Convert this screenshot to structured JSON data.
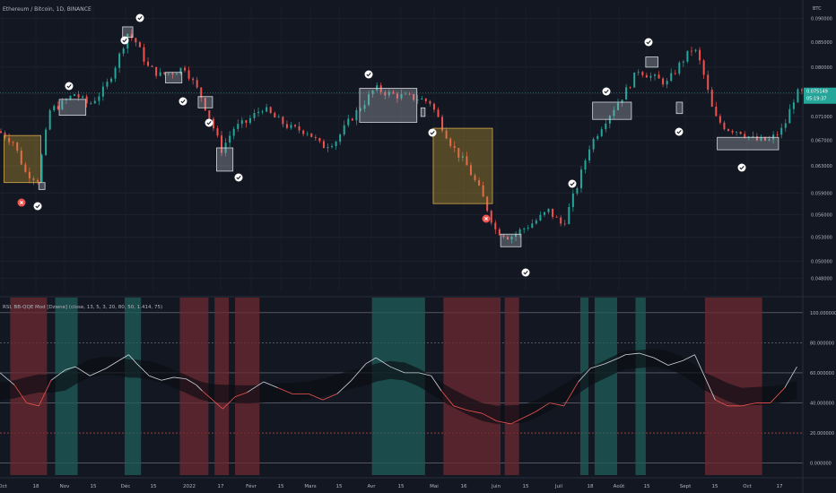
{
  "header": {
    "symbol_line": "Ethereum / Bitcoin, 1D, BINANCE",
    "currency": "BTC"
  },
  "indicator": {
    "label": "RSI, BB-QQE Mod [Dzwne] (close, 13, 5, 3, 20, 80, 50, 1.414, 75)"
  },
  "price_scale": {
    "ticks": [
      "0.090000",
      "0.085000",
      "0.080000",
      "0.075000",
      "0.071000",
      "0.067000",
      "0.063000",
      "0.059000",
      "0.056000",
      "0.053000",
      "0.050000",
      "0.048000"
    ],
    "last_price": "0.075149",
    "countdown": "05:19:37"
  },
  "osc_scale": {
    "ticks": [
      "100.000000",
      "80.000000",
      "60.000000",
      "40.000000",
      "20.000000",
      "0.000000"
    ]
  },
  "time_axis": {
    "labels": [
      "Oct",
      "18",
      "Nov",
      "15",
      "Déc",
      "15",
      "2022",
      "17",
      "Févr",
      "15",
      "Mars",
      "15",
      "Avr",
      "15",
      "Mai",
      "16",
      "Juin",
      "15",
      "Juil",
      "18",
      "Août",
      "15",
      "Sept",
      "15",
      "Oct",
      "17"
    ]
  },
  "colors": {
    "background": "#131722",
    "up": "#26a69a",
    "down": "#ef5350",
    "zone_fill": "#b2b5be",
    "entry_zone": "#c8a030",
    "green_band": "#1f5f5a",
    "red_band": "#6e2a30",
    "rsi_line": "#d1d4dc",
    "rsi_low_line": "#ef5350",
    "check_marker": "#ffffff",
    "cross_marker": "#ef5350"
  },
  "markers": {
    "check_icon": "check-circle-icon",
    "cross_icon": "x-circle-icon"
  },
  "chart_data": [
    {
      "type": "candlestick",
      "title": "Ethereum / Bitcoin, 1D, BINANCE",
      "ylabel": "BTC",
      "yscale": "log",
      "x_range": [
        "2021-10-01",
        "2022-10-28"
      ],
      "ylim": [
        0.0465,
        0.0925
      ],
      "series": [
        {
          "name": "price_path",
          "x": [
            "2021-10-01",
            "2021-10-08",
            "2021-10-14",
            "2021-10-20",
            "2021-10-26",
            "2021-11-02",
            "2021-11-07",
            "2021-11-14",
            "2021-11-22",
            "2021-11-28",
            "2021-12-03",
            "2021-12-07",
            "2021-12-13",
            "2021-12-19",
            "2021-12-25",
            "2021-12-31",
            "2022-01-05",
            "2022-01-08",
            "2022-01-13",
            "2022-01-18",
            "2022-01-24",
            "2022-01-30",
            "2022-02-07",
            "2022-02-14",
            "2022-02-21",
            "2022-03-01",
            "2022-03-08",
            "2022-03-15",
            "2022-03-22",
            "2022-03-29",
            "2022-04-03",
            "2022-04-10",
            "2022-04-17",
            "2022-04-24",
            "2022-04-30",
            "2022-05-05",
            "2022-05-11",
            "2022-05-18",
            "2022-05-25",
            "2022-06-01",
            "2022-06-08",
            "2022-06-14",
            "2022-06-20",
            "2022-06-27",
            "2022-07-04",
            "2022-07-11",
            "2022-07-17",
            "2022-07-24",
            "2022-07-31",
            "2022-08-03",
            "2022-08-10",
            "2022-08-17",
            "2022-08-24",
            "2022-08-31",
            "2022-09-06",
            "2022-09-10",
            "2022-09-16",
            "2022-09-22",
            "2022-09-29",
            "2022-10-06",
            "2022-10-13",
            "2022-10-20",
            "2022-10-26"
          ],
          "y": [
            0.0685,
            0.0668,
            0.062,
            0.061,
            0.072,
            0.0735,
            0.075,
            0.073,
            0.076,
            0.0812,
            0.0868,
            0.085,
            0.08,
            0.0785,
            0.079,
            0.08,
            0.0765,
            0.0745,
            0.07,
            0.0655,
            0.069,
            0.07,
            0.0725,
            0.0705,
            0.069,
            0.0685,
            0.066,
            0.067,
            0.0705,
            0.0735,
            0.076,
            0.075,
            0.0745,
            0.0742,
            0.0735,
            0.07,
            0.066,
            0.063,
            0.059,
            0.054,
            0.053,
            0.054,
            0.055,
            0.0565,
            0.0545,
            0.06,
            0.066,
            0.07,
            0.0735,
            0.075,
            0.0795,
            0.078,
            0.077,
            0.081,
            0.084,
            0.08,
            0.071,
            0.069,
            0.0685,
            0.067,
            0.067,
            0.069,
            0.0751
          ]
        }
      ],
      "annotations": [
        {
          "label": "zone",
          "x_start": "2021-10-03",
          "x_end": "2021-10-21",
          "y_low": 0.0605,
          "y_high": 0.0678,
          "kind": "entry"
        },
        {
          "label": "zone",
          "x_start": "2021-10-20",
          "x_end": "2021-10-23",
          "y_low": 0.0595,
          "y_high": 0.0605,
          "kind": "box"
        },
        {
          "label": "zone",
          "x_start": "2021-10-30",
          "x_end": "2021-11-12",
          "y_low": 0.0712,
          "y_high": 0.074,
          "kind": "box"
        },
        {
          "label": "zone",
          "x_start": "2021-11-30",
          "x_end": "2021-12-05",
          "y_low": 0.086,
          "y_high": 0.0882,
          "kind": "box"
        },
        {
          "label": "zone",
          "x_start": "2021-12-21",
          "x_end": "2021-12-29",
          "y_low": 0.077,
          "y_high": 0.079,
          "kind": "box"
        },
        {
          "label": "zone",
          "x_start": "2022-01-06",
          "x_end": "2022-01-13",
          "y_low": 0.0725,
          "y_high": 0.0745,
          "kind": "box"
        },
        {
          "label": "zone",
          "x_start": "2022-01-15",
          "x_end": "2022-01-23",
          "y_low": 0.0622,
          "y_high": 0.0658,
          "kind": "box"
        },
        {
          "label": "zone",
          "x_start": "2022-03-26",
          "x_end": "2022-04-23",
          "y_low": 0.07,
          "y_high": 0.076,
          "kind": "box"
        },
        {
          "label": "zone",
          "x_start": "2022-04-25",
          "x_end": "2022-04-27",
          "y_low": 0.071,
          "y_high": 0.0725,
          "kind": "box"
        },
        {
          "label": "zone",
          "x_start": "2022-05-01",
          "x_end": "2022-05-30",
          "y_low": 0.0575,
          "y_high": 0.069,
          "kind": "entry"
        },
        {
          "label": "zone",
          "x_start": "2022-06-03",
          "x_end": "2022-06-13",
          "y_low": 0.0518,
          "y_high": 0.0534,
          "kind": "box"
        },
        {
          "label": "zone",
          "x_start": "2022-07-18",
          "x_end": "2022-08-06",
          "y_low": 0.0705,
          "y_high": 0.0735,
          "kind": "box"
        },
        {
          "label": "zone",
          "x_start": "2022-08-13",
          "x_end": "2022-08-19",
          "y_low": 0.08,
          "y_high": 0.082,
          "kind": "box"
        },
        {
          "label": "zone",
          "x_start": "2022-08-28",
          "x_end": "2022-08-31",
          "y_low": 0.0715,
          "y_high": 0.0735,
          "kind": "box"
        },
        {
          "label": "zone",
          "x_start": "2022-09-17",
          "x_end": "2022-10-17",
          "y_low": 0.0655,
          "y_high": 0.0675,
          "kind": "box"
        }
      ]
    },
    {
      "type": "line",
      "title": "RSI, BB-QQE Mod [Dzwne] (close, 13, 5, 3, 20, 80, 50, 1.414, 75)",
      "ylim": [
        -8,
        110
      ],
      "hlines": [
        100,
        80,
        60,
        40,
        20,
        0
      ],
      "series": [
        {
          "name": "RSI",
          "x": [
            "2021-10-01",
            "2021-10-08",
            "2021-10-14",
            "2021-10-20",
            "2021-10-26",
            "2021-11-02",
            "2021-11-07",
            "2021-11-14",
            "2021-11-22",
            "2021-11-28",
            "2021-12-03",
            "2021-12-07",
            "2021-12-13",
            "2021-12-19",
            "2021-12-25",
            "2021-12-31",
            "2022-01-05",
            "2022-01-08",
            "2022-01-13",
            "2022-01-18",
            "2022-01-24",
            "2022-01-30",
            "2022-02-07",
            "2022-02-14",
            "2022-02-21",
            "2022-03-01",
            "2022-03-08",
            "2022-03-15",
            "2022-03-22",
            "2022-03-29",
            "2022-04-03",
            "2022-04-10",
            "2022-04-17",
            "2022-04-24",
            "2022-04-30",
            "2022-05-05",
            "2022-05-11",
            "2022-05-18",
            "2022-05-25",
            "2022-06-01",
            "2022-06-08",
            "2022-06-14",
            "2022-06-20",
            "2022-06-27",
            "2022-07-04",
            "2022-07-11",
            "2022-07-17",
            "2022-07-24",
            "2022-07-31",
            "2022-08-03",
            "2022-08-10",
            "2022-08-17",
            "2022-08-24",
            "2022-08-31",
            "2022-09-06",
            "2022-09-10",
            "2022-09-16",
            "2022-09-22",
            "2022-09-29",
            "2022-10-06",
            "2022-10-13",
            "2022-10-20",
            "2022-10-26"
          ],
          "y": [
            60,
            52,
            40,
            38,
            55,
            62,
            64,
            58,
            63,
            68,
            72,
            66,
            58,
            55,
            57,
            56,
            52,
            48,
            42,
            36,
            44,
            47,
            54,
            50,
            46,
            46,
            42,
            46,
            55,
            66,
            70,
            64,
            60,
            60,
            58,
            48,
            38,
            35,
            33,
            28,
            26,
            30,
            34,
            40,
            38,
            54,
            63,
            66,
            70,
            72,
            73,
            70,
            65,
            68,
            72,
            60,
            42,
            38,
            38,
            40,
            40,
            50,
            64
          ]
        }
      ],
      "bands": [
        {
          "color": "red",
          "x_start": "2021-10-06",
          "x_end": "2021-10-24"
        },
        {
          "color": "green",
          "x_start": "2021-10-28",
          "x_end": "2021-11-08"
        },
        {
          "color": "green",
          "x_start": "2021-12-01",
          "x_end": "2021-12-09"
        },
        {
          "color": "red",
          "x_start": "2021-12-28",
          "x_end": "2022-01-11"
        },
        {
          "color": "red",
          "x_start": "2022-01-14",
          "x_end": "2022-01-21"
        },
        {
          "color": "red",
          "x_start": "2022-01-24",
          "x_end": "2022-02-05"
        },
        {
          "color": "green",
          "x_start": "2022-04-01",
          "x_end": "2022-04-27"
        },
        {
          "color": "red",
          "x_start": "2022-05-06",
          "x_end": "2022-06-03"
        },
        {
          "color": "red",
          "x_start": "2022-06-05",
          "x_end": "2022-06-12"
        },
        {
          "color": "green",
          "x_start": "2022-07-12",
          "x_end": "2022-07-16"
        },
        {
          "color": "green",
          "x_start": "2022-07-19",
          "x_end": "2022-07-30"
        },
        {
          "color": "green",
          "x_start": "2022-08-08",
          "x_end": "2022-08-13"
        },
        {
          "color": "red",
          "x_start": "2022-09-11",
          "x_end": "2022-10-09"
        }
      ]
    }
  ]
}
